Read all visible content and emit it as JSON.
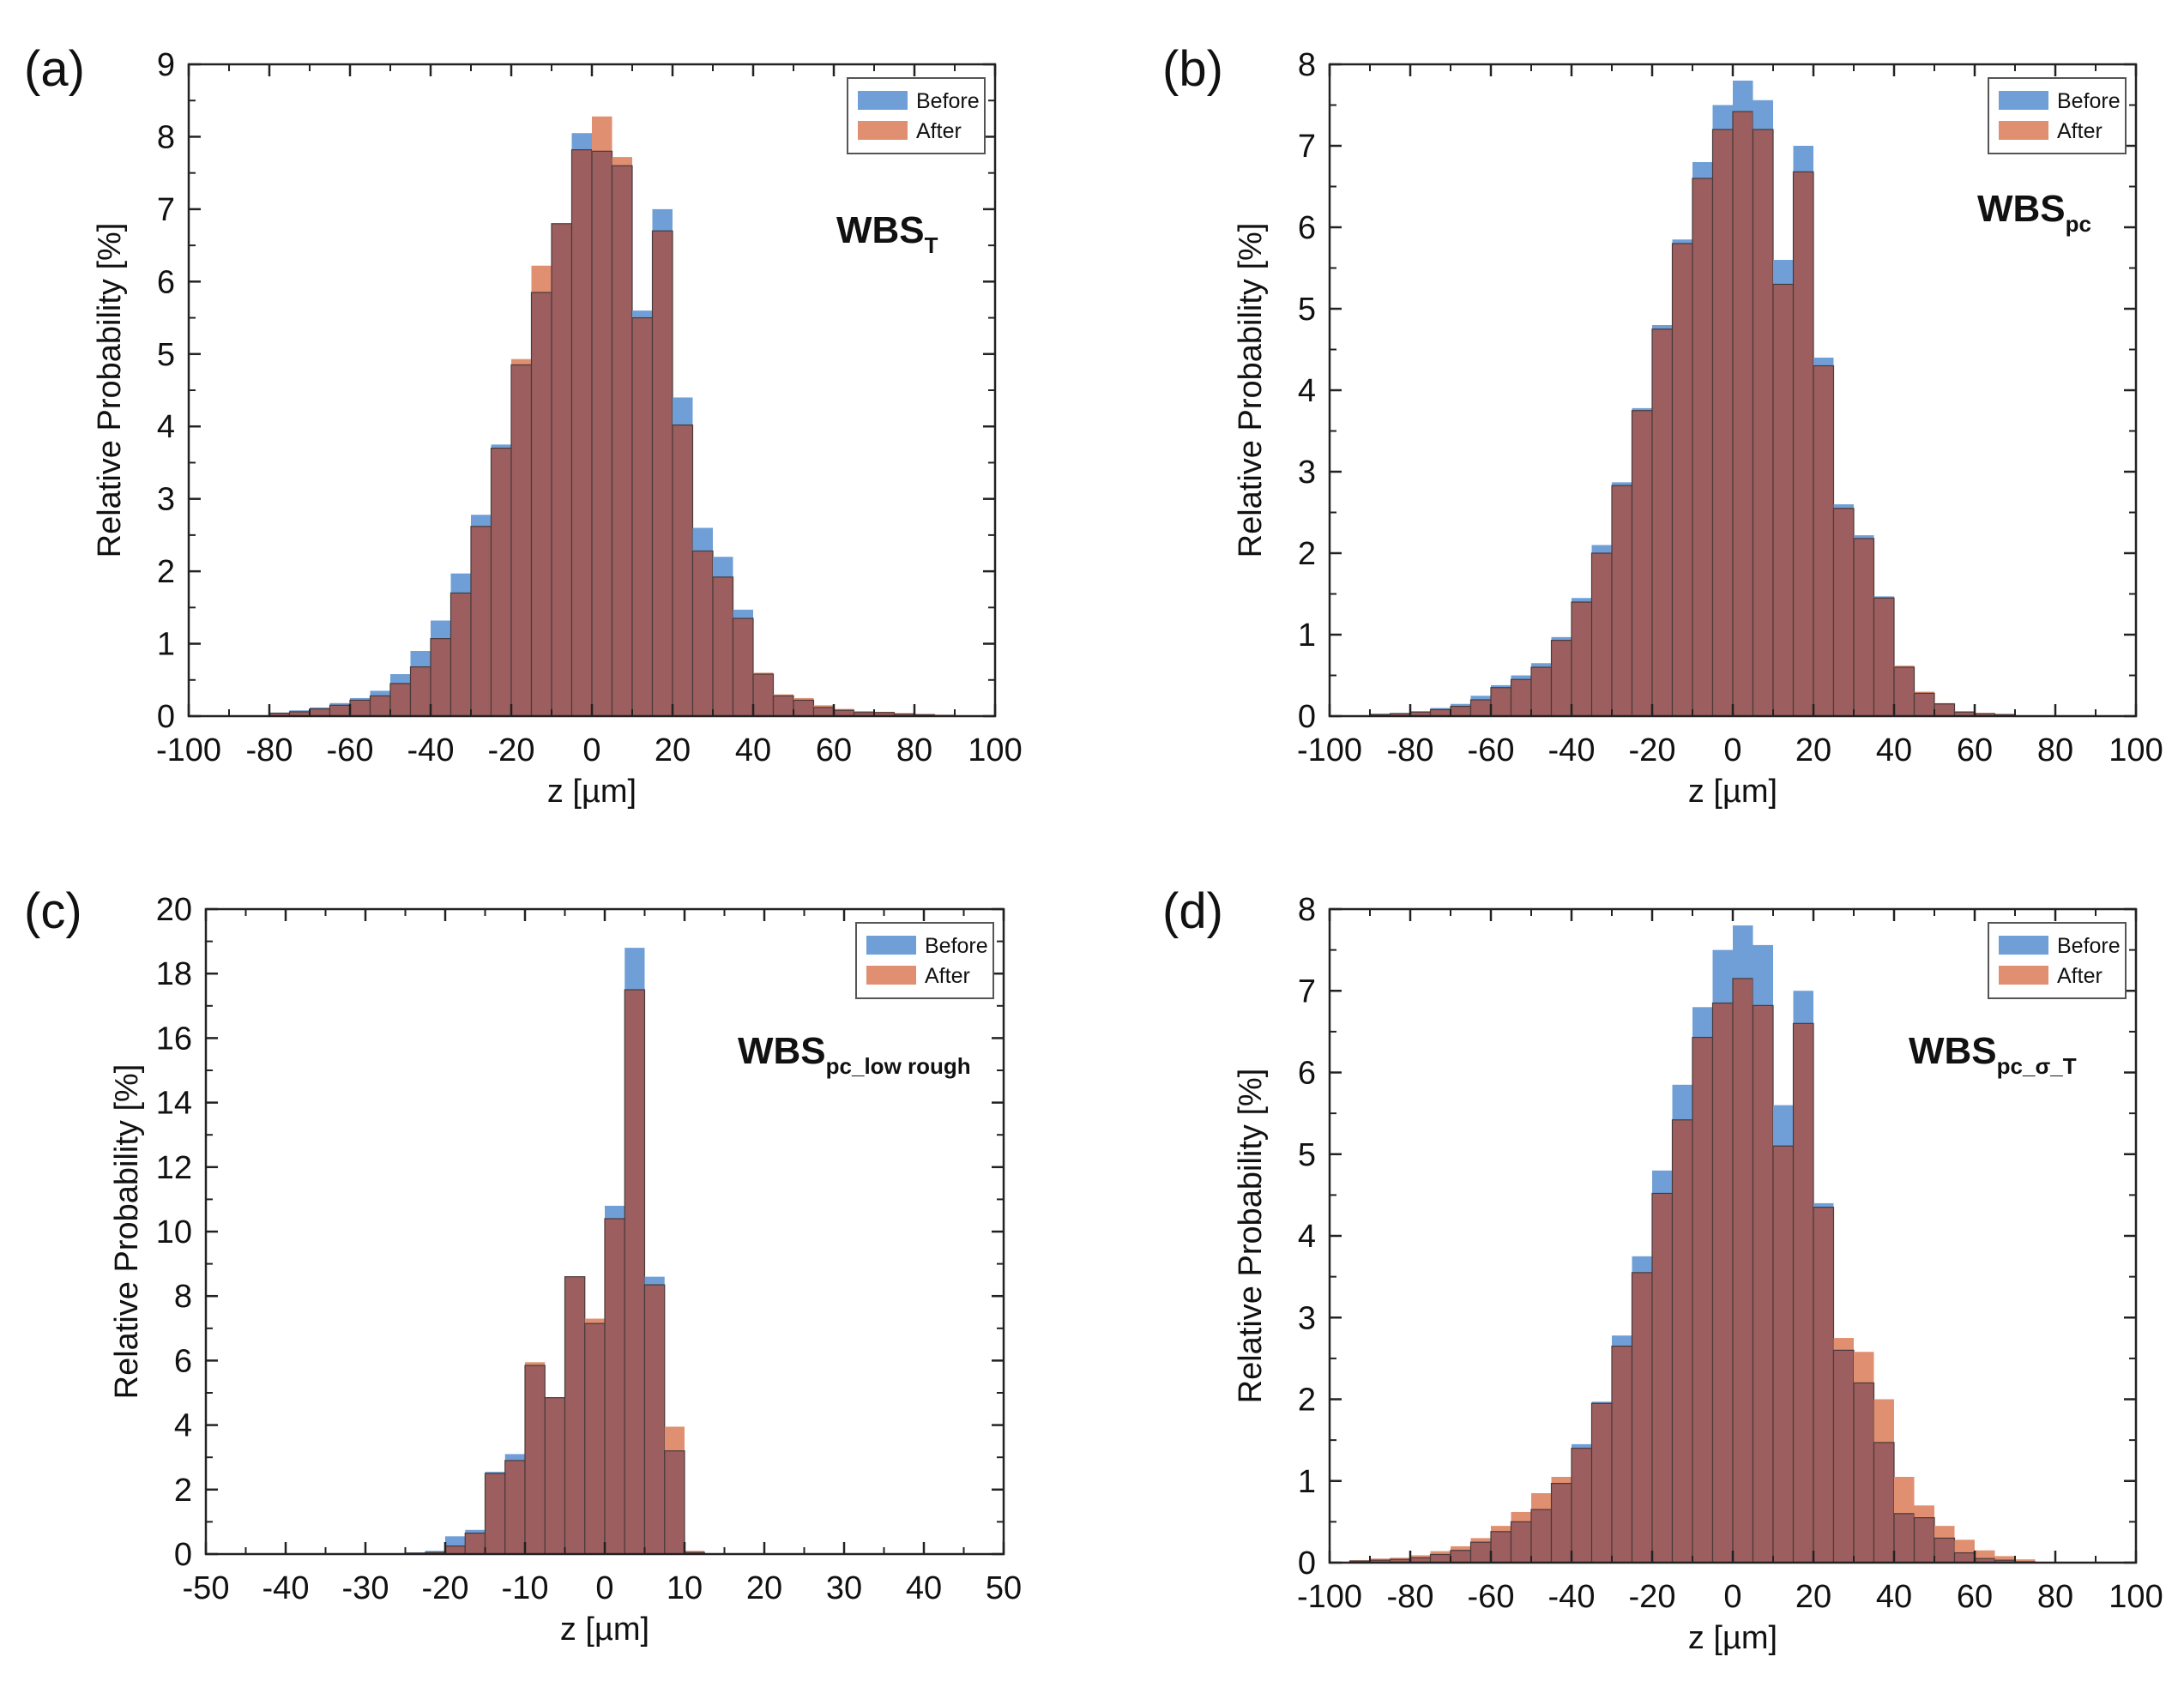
{
  "colors": {
    "before": "#6f9fd6",
    "after": "#e08f70",
    "overlap": "#9c5e5e",
    "bar_edge": "#4a3a3a"
  },
  "chart_data": [
    {
      "type": "bar",
      "panel": "(a)",
      "annotation": {
        "main": "WBS",
        "sub": "T"
      },
      "xlabel": "z [µm]",
      "ylabel": "Relative Probability [%]",
      "xlim": [
        -100,
        100
      ],
      "ylim": [
        0,
        9
      ],
      "x_ticks": [
        -100,
        -80,
        -60,
        -40,
        -20,
        0,
        20,
        40,
        60,
        80,
        100
      ],
      "y_ticks": [
        0,
        1,
        2,
        3,
        4,
        5,
        6,
        7,
        8,
        9
      ],
      "bin_width": 5,
      "legend": {
        "position": "top-right",
        "entries": [
          "Before",
          "After"
        ]
      },
      "x": [
        -77.5,
        -72.5,
        -67.5,
        -62.5,
        -57.5,
        -52.5,
        -47.5,
        -42.5,
        -37.5,
        -32.5,
        -27.5,
        -22.5,
        -17.5,
        -12.5,
        -7.5,
        -2.5,
        2.5,
        7.5,
        12.5,
        17.5,
        22.5,
        27.5,
        32.5,
        37.5,
        42.5,
        47.5,
        52.5,
        57.5,
        62.5,
        67.5,
        72.5,
        77.5,
        82.5,
        87.5
      ],
      "series": [
        {
          "name": "Before",
          "values": [
            0.05,
            0.08,
            0.12,
            0.18,
            0.25,
            0.35,
            0.58,
            0.9,
            1.32,
            1.97,
            2.78,
            3.75,
            4.85,
            5.85,
            6.8,
            8.05,
            7.8,
            7.6,
            5.6,
            7.0,
            4.4,
            2.6,
            2.2,
            1.47,
            0.58,
            0.28,
            0.22,
            0.12,
            0.08,
            0.05,
            0.05,
            0.03,
            0.02,
            0.01
          ]
        },
        {
          "name": "After",
          "values": [
            0.04,
            0.06,
            0.1,
            0.15,
            0.22,
            0.28,
            0.45,
            0.68,
            1.07,
            1.7,
            2.62,
            3.7,
            4.93,
            6.22,
            6.8,
            7.82,
            8.28,
            7.72,
            5.5,
            6.7,
            4.02,
            2.28,
            1.92,
            1.35,
            0.6,
            0.3,
            0.25,
            0.15,
            0.1,
            0.07,
            0.06,
            0.04,
            0.03,
            0.02
          ]
        }
      ]
    },
    {
      "type": "bar",
      "panel": "(b)",
      "annotation": {
        "main": "WBS",
        "sub": "pc"
      },
      "xlabel": "z [µm]",
      "ylabel": "Relative Probability [%]",
      "xlim": [
        -100,
        100
      ],
      "ylim": [
        0,
        8
      ],
      "x_ticks": [
        -100,
        -80,
        -60,
        -40,
        -20,
        0,
        20,
        40,
        60,
        80,
        100
      ],
      "y_ticks": [
        0,
        1,
        2,
        3,
        4,
        5,
        6,
        7,
        8
      ],
      "bin_width": 5,
      "legend": {
        "position": "top-right",
        "entries": [
          "Before",
          "After"
        ]
      },
      "x": [
        -87.5,
        -82.5,
        -77.5,
        -72.5,
        -67.5,
        -62.5,
        -57.5,
        -52.5,
        -47.5,
        -42.5,
        -37.5,
        -32.5,
        -27.5,
        -22.5,
        -17.5,
        -12.5,
        -7.5,
        -2.5,
        2.5,
        7.5,
        12.5,
        17.5,
        22.5,
        27.5,
        32.5,
        37.5,
        42.5,
        47.5,
        52.5,
        57.5,
        62.5,
        67.5
      ],
      "series": [
        {
          "name": "Before",
          "values": [
            0.03,
            0.04,
            0.06,
            0.1,
            0.15,
            0.25,
            0.38,
            0.5,
            0.65,
            0.97,
            1.45,
            2.1,
            2.87,
            3.78,
            4.8,
            5.85,
            6.8,
            7.5,
            7.8,
            7.56,
            5.6,
            7.0,
            4.4,
            2.6,
            2.22,
            1.47,
            0.6,
            0.28,
            0.15,
            0.05,
            0.03,
            0.02
          ]
        },
        {
          "name": "After",
          "values": [
            0.02,
            0.03,
            0.05,
            0.08,
            0.12,
            0.2,
            0.35,
            0.45,
            0.6,
            0.93,
            1.4,
            2.0,
            2.83,
            3.75,
            4.75,
            5.8,
            6.6,
            7.2,
            7.42,
            7.2,
            5.3,
            6.68,
            4.3,
            2.55,
            2.18,
            1.45,
            0.62,
            0.3,
            0.16,
            0.06,
            0.04,
            0.02
          ]
        }
      ]
    },
    {
      "type": "bar",
      "panel": "(c)",
      "annotation": {
        "main": "WBS",
        "sub": "pc_low rough"
      },
      "xlabel": "z [µm]",
      "ylabel": "Relative Probability [%]",
      "xlim": [
        -50,
        50
      ],
      "ylim": [
        0,
        20
      ],
      "x_ticks": [
        -50,
        -40,
        -30,
        -20,
        -10,
        0,
        10,
        20,
        30,
        40,
        50
      ],
      "y_ticks": [
        0,
        2,
        4,
        6,
        8,
        10,
        12,
        14,
        16,
        18,
        20
      ],
      "bin_width": 2.5,
      "legend": {
        "position": "top-right",
        "entries": [
          "Before",
          "After"
        ]
      },
      "x": [
        -23.75,
        -21.25,
        -18.75,
        -16.25,
        -13.75,
        -11.25,
        -8.75,
        -6.25,
        -3.75,
        -1.25,
        1.25,
        3.75,
        6.25,
        8.75,
        11.25
      ],
      "series": [
        {
          "name": "Before",
          "values": [
            0.05,
            0.1,
            0.55,
            0.75,
            2.55,
            3.1,
            5.85,
            4.85,
            8.6,
            7.15,
            10.8,
            18.8,
            8.6,
            3.2,
            0.05
          ]
        },
        {
          "name": "After",
          "values": [
            0.03,
            0.05,
            0.25,
            0.65,
            2.5,
            2.9,
            5.95,
            4.85,
            8.6,
            7.3,
            10.4,
            17.5,
            8.35,
            3.95,
            0.1
          ]
        }
      ]
    },
    {
      "type": "bar",
      "panel": "(d)",
      "annotation": {
        "main": "WBS",
        "sub": "pc_σ_T"
      },
      "xlabel": "z [µm]",
      "ylabel": "Relative Probability [%]",
      "xlim": [
        -100,
        100
      ],
      "ylim": [
        0,
        8
      ],
      "x_ticks": [
        -100,
        -80,
        -60,
        -40,
        -20,
        0,
        20,
        40,
        60,
        80,
        100
      ],
      "y_ticks": [
        0,
        1,
        2,
        3,
        4,
        5,
        6,
        7,
        8
      ],
      "bin_width": 5,
      "legend": {
        "position": "top-right",
        "entries": [
          "Before",
          "After"
        ]
      },
      "x": [
        -92.5,
        -87.5,
        -82.5,
        -77.5,
        -72.5,
        -67.5,
        -62.5,
        -57.5,
        -52.5,
        -47.5,
        -42.5,
        -37.5,
        -32.5,
        -27.5,
        -22.5,
        -17.5,
        -12.5,
        -7.5,
        -2.5,
        2.5,
        7.5,
        12.5,
        17.5,
        22.5,
        27.5,
        32.5,
        37.5,
        42.5,
        47.5,
        52.5,
        57.5,
        62.5,
        67.5,
        72.5
      ],
      "series": [
        {
          "name": "Before",
          "values": [
            0.02,
            0.03,
            0.04,
            0.06,
            0.1,
            0.15,
            0.25,
            0.38,
            0.5,
            0.65,
            0.97,
            1.45,
            1.97,
            2.78,
            3.75,
            4.8,
            5.85,
            6.8,
            7.5,
            7.8,
            7.56,
            5.6,
            7.0,
            4.4,
            2.6,
            2.2,
            1.47,
            0.6,
            0.55,
            0.3,
            0.12,
            0.05,
            0.03,
            0.01
          ]
        },
        {
          "name": "After",
          "values": [
            0.03,
            0.05,
            0.06,
            0.09,
            0.14,
            0.2,
            0.3,
            0.45,
            0.62,
            0.85,
            1.05,
            1.4,
            1.95,
            2.65,
            3.55,
            4.52,
            5.42,
            6.43,
            6.85,
            7.15,
            6.82,
            5.1,
            6.6,
            4.35,
            2.75,
            2.58,
            2.0,
            1.05,
            0.7,
            0.45,
            0.28,
            0.15,
            0.08,
            0.04
          ]
        }
      ]
    }
  ]
}
